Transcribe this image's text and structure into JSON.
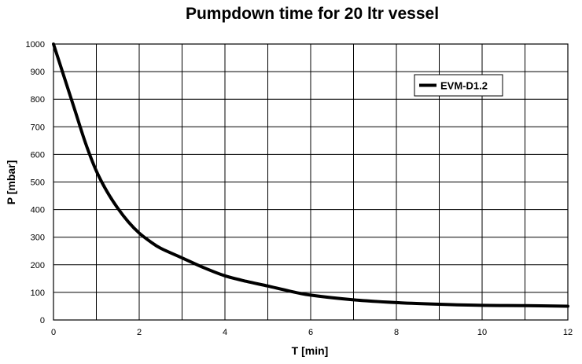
{
  "chart_data": {
    "type": "line",
    "title": "Pumpdown time for 20 ltr vessel",
    "xlabel": "T [min]",
    "ylabel": "P [mbar]",
    "xlim": [
      0,
      12
    ],
    "ylim": [
      0,
      1000
    ],
    "xticks": [
      "0",
      "2",
      "4",
      "6",
      "8",
      "10",
      "12"
    ],
    "yticks": [
      "0",
      "100",
      "200",
      "300",
      "400",
      "500",
      "600",
      "700",
      "800",
      "900",
      "1000"
    ],
    "grid": true,
    "legend_position": "top-right",
    "line_color": "#000000",
    "series": [
      {
        "name": "EVM-D1.2",
        "x": [
          0,
          0.25,
          0.5,
          0.75,
          1.0,
          1.25,
          1.5,
          1.75,
          2.0,
          2.25,
          2.5,
          3.0,
          3.5,
          4.0,
          4.5,
          5.0,
          5.5,
          6.0,
          7.0,
          8.0,
          9.0,
          10.0,
          11.0,
          12.0
        ],
        "y": [
          1000,
          880,
          760,
          640,
          540,
          465,
          405,
          355,
          315,
          285,
          260,
          225,
          190,
          160,
          140,
          123,
          105,
          90,
          73,
          63,
          57,
          53,
          52,
          50
        ]
      }
    ]
  }
}
